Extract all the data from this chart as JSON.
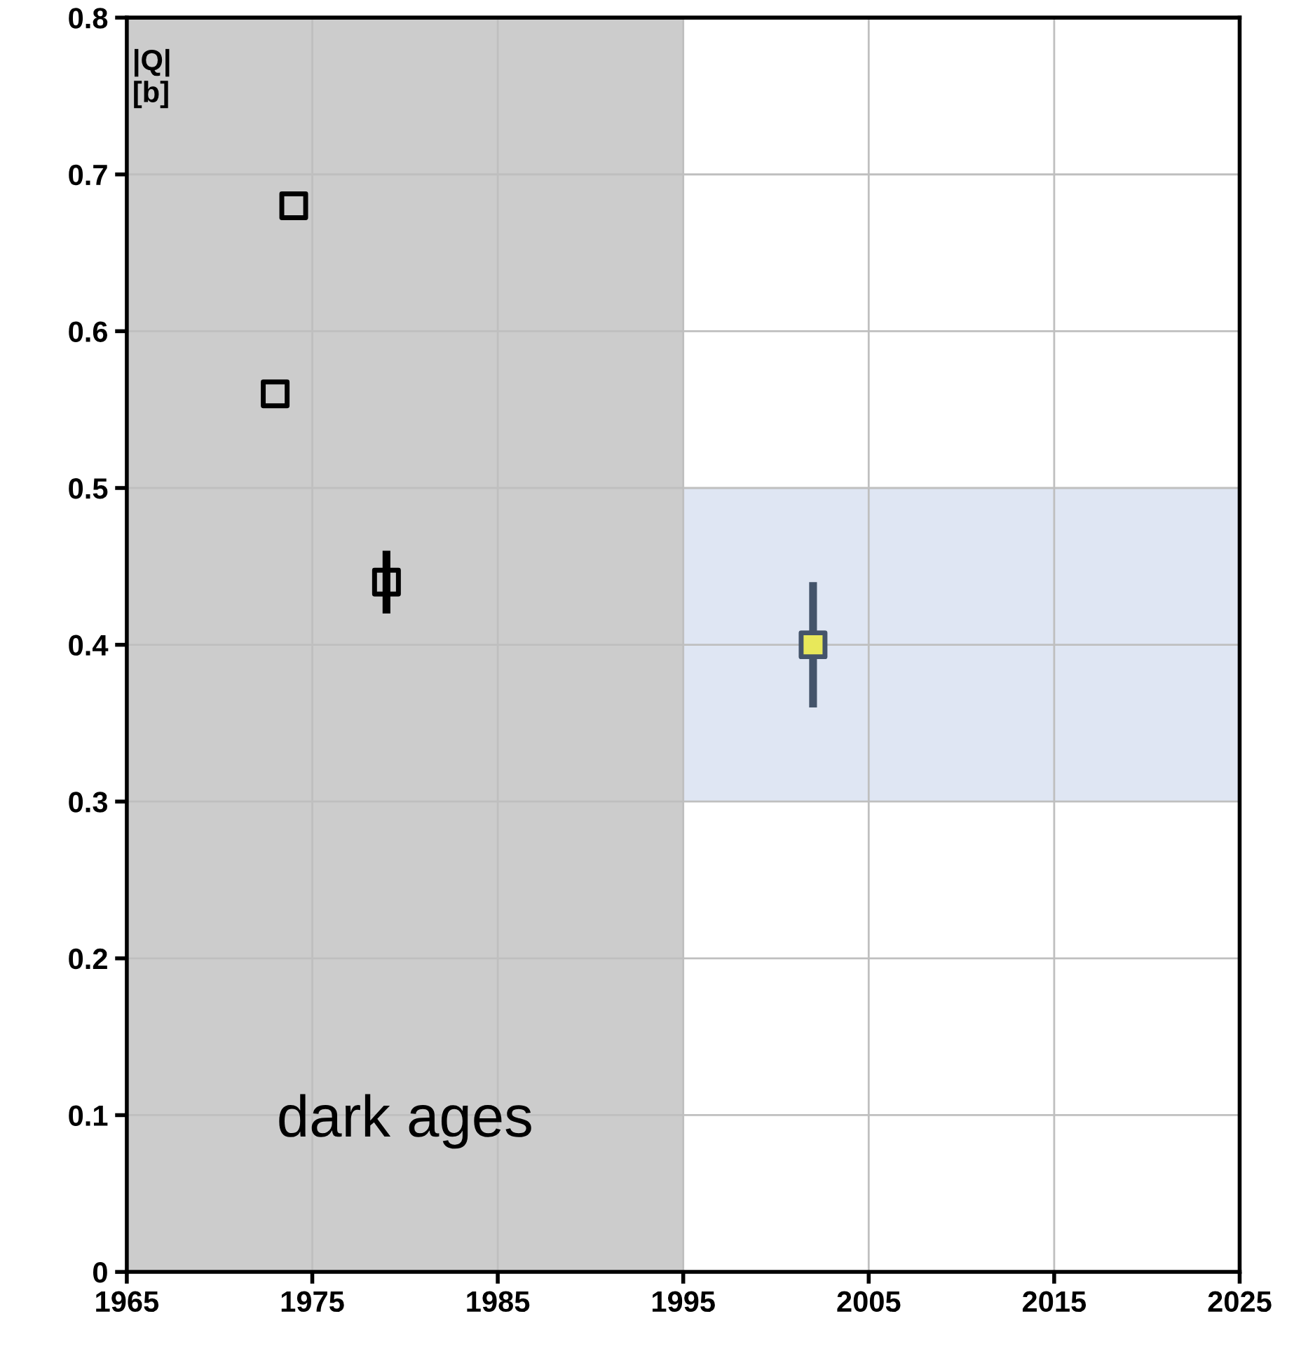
{
  "chart_data": {
    "type": "scatter",
    "ylabel": "|Q|\n[b]",
    "xlim": [
      1965,
      2025
    ],
    "xticks": [
      1965,
      1975,
      1985,
      1995,
      2005,
      2015,
      2025
    ],
    "ylim": [
      0,
      0.8
    ],
    "yticks": [
      0,
      0.1,
      0.2,
      0.3,
      0.4,
      0.5,
      0.6,
      0.7,
      0.8
    ],
    "grid": true,
    "marker": "square",
    "series": [
      {
        "color": "#000000",
        "x": [
          1973,
          1974,
          1979
        ],
        "values": [
          0.56,
          0.68,
          0.44
        ],
        "errors": [
          null,
          null,
          0.02
        ]
      },
      {
        "color": "#e8e85a",
        "x": [
          2002
        ],
        "values": [
          0.4
        ],
        "errors": [
          0.04
        ]
      }
    ],
    "bands": [
      {
        "axis": "y",
        "from": 0.3,
        "to": 0.5,
        "label": null,
        "color": "#dfe6f3"
      },
      {
        "axis": "x",
        "from": 1965,
        "to": 1995,
        "label": "dark ages",
        "color": "#cccccc"
      }
    ]
  }
}
